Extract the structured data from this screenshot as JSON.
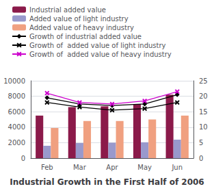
{
  "chart_data": {
    "type": "bar",
    "title": "Industrial Growth in the First Half of 2006",
    "categories": [
      "Feb",
      "Mar",
      "Apr",
      "May",
      "Jun"
    ],
    "series": [
      {
        "name": "Industrial added value",
        "type": "bar",
        "color": "#8B1A4A",
        "values": [
          5500,
          6600,
          6700,
          7000,
          8200
        ]
      },
      {
        "name": "Added value of light industry",
        "type": "bar",
        "color": "#9999CC",
        "values": [
          1600,
          1950,
          2000,
          2050,
          2400
        ]
      },
      {
        "name": "Added value of heavy industry",
        "type": "bar",
        "color": "#F0A080",
        "values": [
          3900,
          4800,
          4800,
          5000,
          5500
        ]
      },
      {
        "name": "Growth of industrial added value",
        "type": "line",
        "color": "#000000",
        "marker": "diamond",
        "axis": "y2",
        "values": [
          19.5,
          17.5,
          17.0,
          17.5,
          20.5
        ]
      },
      {
        "name": "Growth of  added value of light industry",
        "type": "line",
        "color": "#000000",
        "marker": "x",
        "axis": "y2",
        "values": [
          18.0,
          16.5,
          15.5,
          16.0,
          18.0
        ]
      },
      {
        "name": "Growth of  added value of heavy industry",
        "type": "line",
        "color": "#CC00CC",
        "marker": "x",
        "axis": "y2",
        "values": [
          21.0,
          18.0,
          17.5,
          18.5,
          21.5
        ]
      }
    ],
    "ylim": [
      0,
      10000
    ],
    "yticks": [
      0,
      2000,
      4000,
      6000,
      8000,
      10000
    ],
    "y2lim": [
      0,
      25
    ],
    "y2ticks": [
      0,
      5,
      10,
      15,
      20,
      25
    ],
    "grid": true,
    "legend": "upper left"
  }
}
